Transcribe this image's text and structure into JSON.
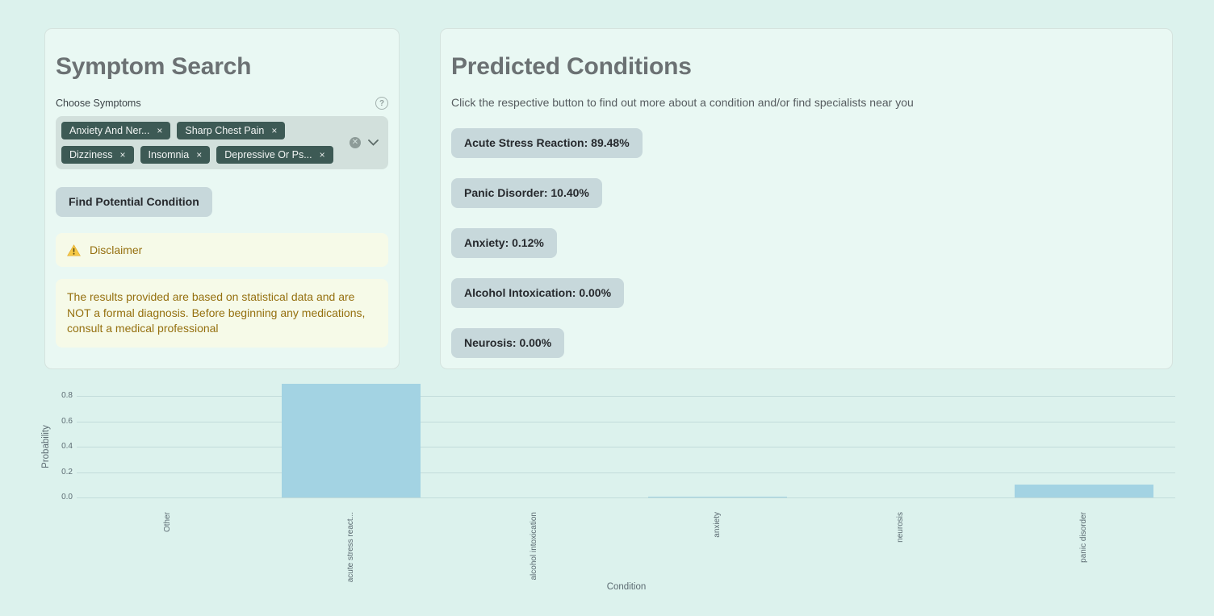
{
  "symptom_search": {
    "title": "Symptom Search",
    "choose_symptoms_label": "Choose Symptoms",
    "selected_symptoms": [
      "Anxiety And Ner...",
      "Sharp Chest Pain",
      "Dizziness",
      "Insomnia",
      "Depressive Or Ps..."
    ],
    "find_button_label": "Find Potential Condition",
    "disclaimer_heading": "Disclaimer",
    "disclaimer_body": "The results provided are based on statistical data and are NOT a formal diagnosis. Before beginning any medications, consult a medical professional"
  },
  "predicted_conditions": {
    "title": "Predicted Conditions",
    "subtitle": "Click the respective button to find out more about a condition and/or find specialists near you",
    "buttons": [
      "Acute Stress Reaction: 89.48%",
      "Panic Disorder: 10.40%",
      "Anxiety: 0.12%",
      "Alcohol Intoxication: 0.00%",
      "Neurosis: 0.00%"
    ]
  },
  "glyphs": {
    "remove": "×",
    "help": "?",
    "clear_all": "✕"
  },
  "colors": {
    "page_bg": "#dcf2ed",
    "card_bg": "#e9f8f3",
    "tag_bg": "#3d5a55",
    "button_bg": "#c7d8db",
    "warning_bg": "#f6fae8",
    "warning_text": "#95700f",
    "bar_fill": "#a3d3e3",
    "title_text": "#6b7173"
  },
  "chart_data": {
    "type": "bar",
    "title": "",
    "categories": [
      "Other",
      "acute stress react...",
      "alcohol intoxication",
      "anxiety",
      "neurosis",
      "panic disorder"
    ],
    "values": [
      0.0,
      0.8948,
      0.0,
      0.0012,
      0.0,
      0.104
    ],
    "xlabel": "Condition",
    "ylabel": "Probability",
    "ylim": [
      0,
      0.95
    ],
    "yticks": [
      0.0,
      0.2,
      0.4,
      0.6,
      0.8
    ],
    "grid": true,
    "legend": false,
    "bar_color": "#a3d3e3"
  }
}
